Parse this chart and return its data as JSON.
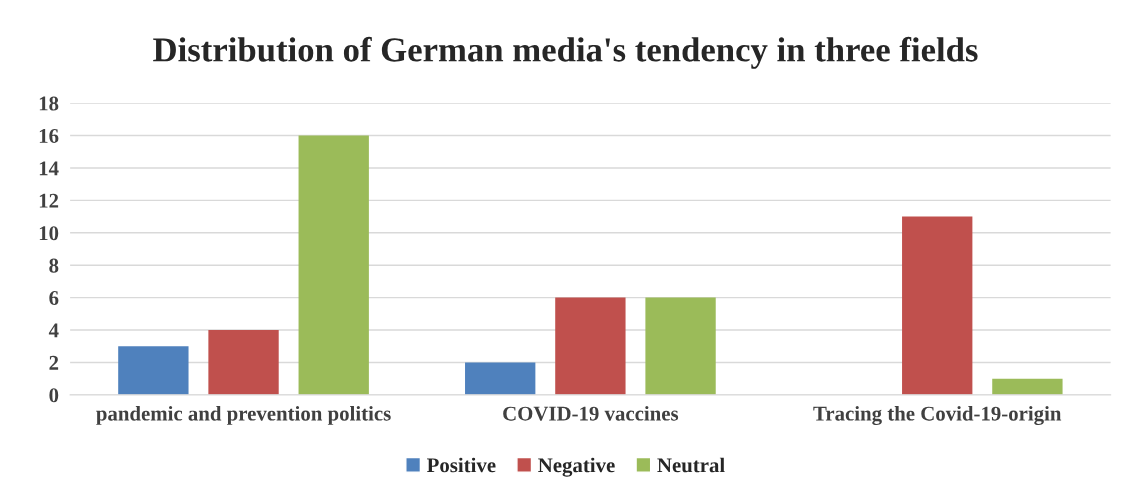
{
  "chart_data": {
    "type": "bar",
    "title": "Distribution of German media's tendency in three fields",
    "categories": [
      "pandemic and prevention politics",
      "COVID-19 vaccines",
      "Tracing the Covid-19-origin"
    ],
    "series": [
      {
        "name": "Positive",
        "color": "#4f81bd",
        "values": [
          3,
          2,
          0
        ]
      },
      {
        "name": "Negative",
        "color": "#c0504d",
        "values": [
          4,
          6,
          11
        ]
      },
      {
        "name": "Neutral",
        "color": "#9bbb59",
        "values": [
          16,
          6,
          1
        ]
      }
    ],
    "ylim": [
      0,
      18
    ],
    "yticks": [
      0,
      2,
      4,
      6,
      8,
      10,
      12,
      14,
      16,
      18
    ],
    "grid": "y",
    "legend": "bottom"
  }
}
